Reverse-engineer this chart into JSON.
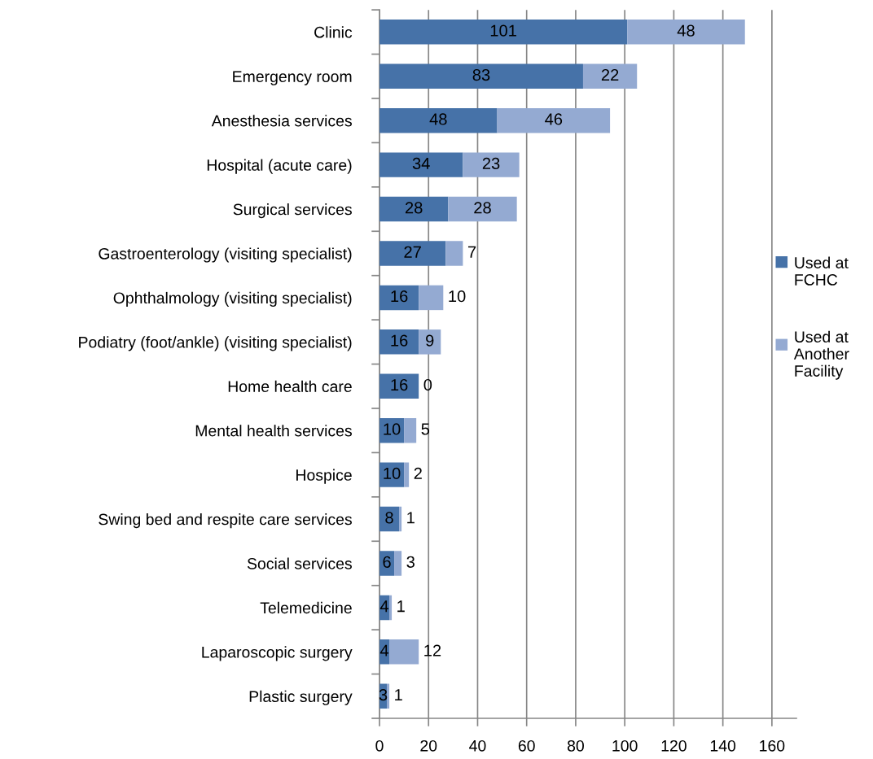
{
  "chart_data": {
    "type": "bar",
    "orientation": "horizontal",
    "stacked": true,
    "categories": [
      "Clinic",
      "Emergency room",
      "Anesthesia services",
      "Hospital (acute care)",
      "Surgical services",
      "Gastroenterology (visiting specialist)",
      "Ophthalmology (visiting specialist)",
      "Podiatry (foot/ankle) (visiting specialist)",
      "Home health care",
      "Mental health services",
      "Hospice",
      "Swing bed and respite care services",
      "Social services",
      "Telemedicine",
      "Laparoscopic surgery",
      "Plastic surgery"
    ],
    "series": [
      {
        "name": "Used at FCHC",
        "color": "#4672a8",
        "values": [
          101,
          83,
          48,
          34,
          28,
          27,
          16,
          16,
          16,
          10,
          10,
          8,
          6,
          4,
          4,
          3
        ]
      },
      {
        "name": "Used at Another Facility",
        "color": "#94aad2",
        "values": [
          48,
          22,
          46,
          23,
          28,
          7,
          10,
          9,
          0,
          5,
          2,
          1,
          3,
          1,
          12,
          1
        ]
      }
    ],
    "xlim": [
      0,
      170
    ],
    "xticks": [
      0,
      20,
      40,
      60,
      80,
      100,
      120,
      140,
      160
    ],
    "grid": "x",
    "legend": "right",
    "data_labels": true
  }
}
